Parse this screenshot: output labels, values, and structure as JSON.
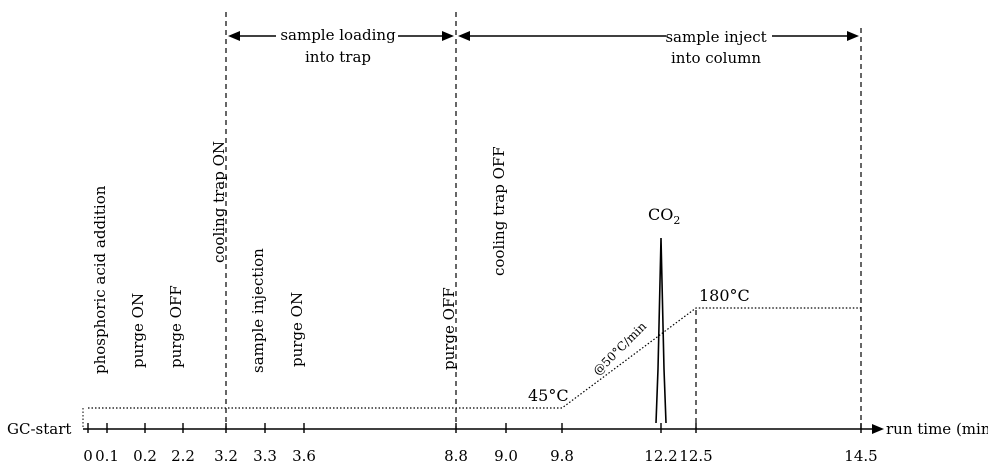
{
  "diagram": {
    "start_label": "GC-start",
    "axis_label": "run time (min)",
    "ticks": [
      {
        "value": 0,
        "label": "0"
      },
      {
        "value": 0.1,
        "label": "0.1"
      },
      {
        "value": 0.2,
        "label": "0.2"
      },
      {
        "value": 2.2,
        "label": "2.2"
      },
      {
        "value": 3.2,
        "label": "3.2"
      },
      {
        "value": 3.3,
        "label": "3.3"
      },
      {
        "value": 3.6,
        "label": "3.6"
      },
      {
        "value": 8.8,
        "label": "8.8"
      },
      {
        "value": 9.0,
        "label": "9.0"
      },
      {
        "value": 9.8,
        "label": "9.8"
      },
      {
        "value": 12.2,
        "label": "12.2"
      },
      {
        "value": 12.5,
        "label": "12.5"
      },
      {
        "value": 14.5,
        "label": "14.5"
      }
    ],
    "events": [
      {
        "time": 0.1,
        "label": "phosphoric acid addition"
      },
      {
        "time": 0.2,
        "label": "purge ON"
      },
      {
        "time": 2.2,
        "label": "purge OFF"
      },
      {
        "time": 3.2,
        "label": "cooling trap ON"
      },
      {
        "time": 3.3,
        "label": "sample injection"
      },
      {
        "time": 3.6,
        "label": "purge ON"
      },
      {
        "time": 8.8,
        "label": "purge OFF"
      },
      {
        "time": 9.0,
        "label": "cooling  trap OFF"
      }
    ],
    "phases": [
      {
        "start": 3.2,
        "end": 8.8,
        "line1": "sample loading",
        "line2": "into trap"
      },
      {
        "start": 8.8,
        "end": 14.5,
        "line1": "sample inject",
        "line2": "into column"
      }
    ],
    "temperature": {
      "initial_label": "45°C",
      "final_label": "180°C",
      "rate_label": "@50°C/min",
      "ramp_start": 9.8,
      "ramp_end": 12.5,
      "end": 14.5
    },
    "peak": {
      "label": "CO",
      "subscript": "2",
      "time": 12.2
    }
  }
}
